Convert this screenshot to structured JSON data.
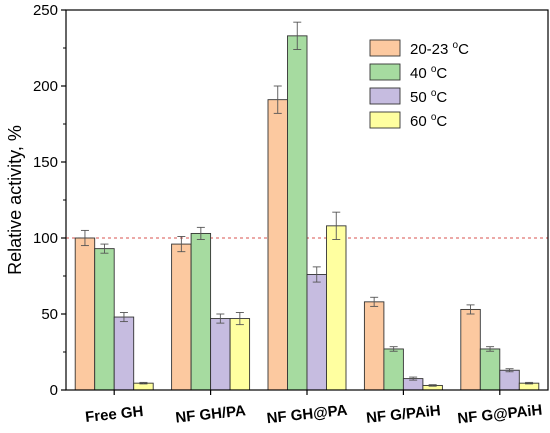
{
  "chart_data": {
    "type": "bar",
    "title": "",
    "xlabel": "",
    "ylabel": "Relative activity, %",
    "ylim": [
      0,
      250
    ],
    "yticks": [
      0,
      50,
      100,
      150,
      200,
      250
    ],
    "categories": [
      "Free GH",
      "NF GH/PA",
      "NF GH@PA",
      "NF G/PAiH",
      "NF G@PAiH"
    ],
    "reference_line": {
      "y": 100,
      "style": "dashed",
      "color": "#d9534f"
    },
    "legend_position": "top-right",
    "series": [
      {
        "name": "20-23 °C",
        "label_main": "20-23 ",
        "label_sup": "o",
        "label_tail": "C",
        "color": "#fcc9a0",
        "values": [
          100,
          96,
          191,
          58,
          53
        ],
        "errors": [
          5,
          5,
          9,
          3,
          3
        ]
      },
      {
        "name": "40 °C",
        "label_main": "40 ",
        "label_sup": "o",
        "label_tail": "C",
        "color": "#a6dba0",
        "values": [
          93,
          103,
          233,
          27,
          27
        ],
        "errors": [
          3,
          4,
          9,
          1.5,
          1.5
        ]
      },
      {
        "name": "50 °C",
        "label_main": "50 ",
        "label_sup": "o",
        "label_tail": "C",
        "color": "#c6bce0",
        "values": [
          48,
          47,
          76,
          7.5,
          13
        ],
        "errors": [
          3,
          3,
          5,
          1,
          1
        ]
      },
      {
        "name": "60 °C",
        "label_main": "60 ",
        "label_sup": "o",
        "label_tail": "C",
        "color": "#ffffa0",
        "values": [
          4.5,
          47,
          108,
          3,
          4.5
        ],
        "errors": [
          0.5,
          4,
          9,
          0.5,
          0.5
        ]
      }
    ]
  }
}
